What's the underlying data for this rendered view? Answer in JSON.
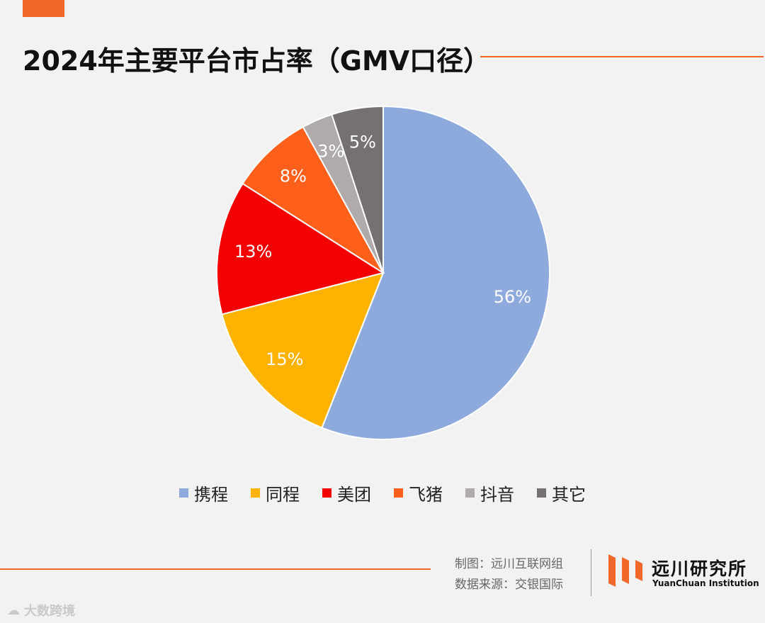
{
  "title": "2024年主要平台市占率（GMV口径）",
  "chart_data": {
    "type": "pie",
    "categories": [
      "携程",
      "同程",
      "美团",
      "飞猪",
      "抖音",
      "其它"
    ],
    "values": [
      56,
      15,
      13,
      8,
      3,
      5
    ],
    "labels": [
      "56%",
      "15%",
      "13%",
      "8%",
      "3%",
      "5%"
    ],
    "colors": [
      "#8eaadc",
      "#ffb300",
      "#f40000",
      "#fe5f1a",
      "#afabab",
      "#767171"
    ],
    "legend_placement": "bottom",
    "start_angle": "top, clockwise; last slice (其它) ends at top"
  },
  "legend": {
    "items": [
      {
        "label": "携程",
        "color": "#8eaadc"
      },
      {
        "label": "同程",
        "color": "#ffb300"
      },
      {
        "label": "美团",
        "color": "#f40000"
      },
      {
        "label": "飞猪",
        "color": "#fe5f1a"
      },
      {
        "label": "抖音",
        "color": "#afabab"
      },
      {
        "label": "其它",
        "color": "#767171"
      }
    ]
  },
  "footer": {
    "credit_line1": "制图：远川互联网组",
    "credit_line2": "数据来源：交银国际",
    "logo_name": "远川研究所",
    "logo_en": "YuanChuan Institution",
    "watermark": "大数跨境"
  },
  "accent_color": "#f2672a"
}
